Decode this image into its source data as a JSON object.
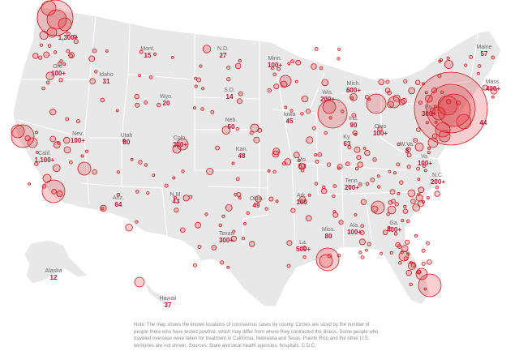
{
  "accent_color": "#d7191c",
  "land_color": "#e8e8e8",
  "states": [
    {
      "name": "Wash.",
      "value": "1,300+"
    },
    {
      "name": "Ore.",
      "value": "100+"
    },
    {
      "name": "Idaho",
      "value": "31"
    },
    {
      "name": "Mont.",
      "value": "15"
    },
    {
      "name": "Wyo.",
      "value": "20"
    },
    {
      "name": "N.D.",
      "value": "27"
    },
    {
      "name": "S.D.",
      "value": "14"
    },
    {
      "name": "Minn.",
      "value": "100+"
    },
    {
      "name": "Nev.",
      "value": "100+"
    },
    {
      "name": "Utah",
      "value": "80"
    },
    {
      "name": "Colo.",
      "value": "300+"
    },
    {
      "name": "Neb.",
      "value": "50"
    },
    {
      "name": "Kan.",
      "value": "48"
    },
    {
      "name": "Iowa",
      "value": "45"
    },
    {
      "name": "Mo.",
      "value": "53"
    },
    {
      "name": "Calif.",
      "value": "1,100+"
    },
    {
      "name": "Ariz.",
      "value": "64"
    },
    {
      "name": "N.M.",
      "value": "43"
    },
    {
      "name": "Texas",
      "value": "300+"
    },
    {
      "name": "Okla.",
      "value": "49"
    },
    {
      "name": "Ark.",
      "value": "100"
    },
    {
      "name": "La.",
      "value": "500+"
    },
    {
      "name": "Miss.",
      "value": "80"
    },
    {
      "name": "Ala.",
      "value": "100+"
    },
    {
      "name": "Ga.",
      "value": "400+"
    },
    {
      "name": "Tenn.",
      "value": "200+"
    },
    {
      "name": "Ky.",
      "value": "63"
    },
    {
      "name": "Ohio",
      "value": "100+"
    },
    {
      "name": "Ind.",
      "value": "90"
    },
    {
      "name": "Wis.",
      "value": "200+"
    },
    {
      "name": "Mich.",
      "value": "500+"
    },
    {
      "name": "Pa.",
      "value": "300+"
    },
    {
      "name": "W.Va.",
      "value": "8"
    },
    {
      "name": "Va.",
      "value": "100+"
    },
    {
      "name": "N.C.",
      "value": "200+"
    },
    {
      "name": "Maine",
      "value": "57"
    },
    {
      "name": "Mass.",
      "value": "400+"
    },
    {
      "name": "N.J.",
      "value": "44"
    },
    {
      "name": "Alaska",
      "value": "12"
    },
    {
      "name": "Hawaii",
      "value": "37"
    }
  ],
  "note": "Note: The map shows the known locations of coronavirus cases by county. Circles are sized by the number of people there who have tested positive, which may differ from where they contracted the illness. Some people who traveled overseas were taken for treatment in California, Nebraska and Texas. Puerto Rico and the other U.S. territories are not shown. Sources: State and local health agencies, hospitals, C.D.C."
}
